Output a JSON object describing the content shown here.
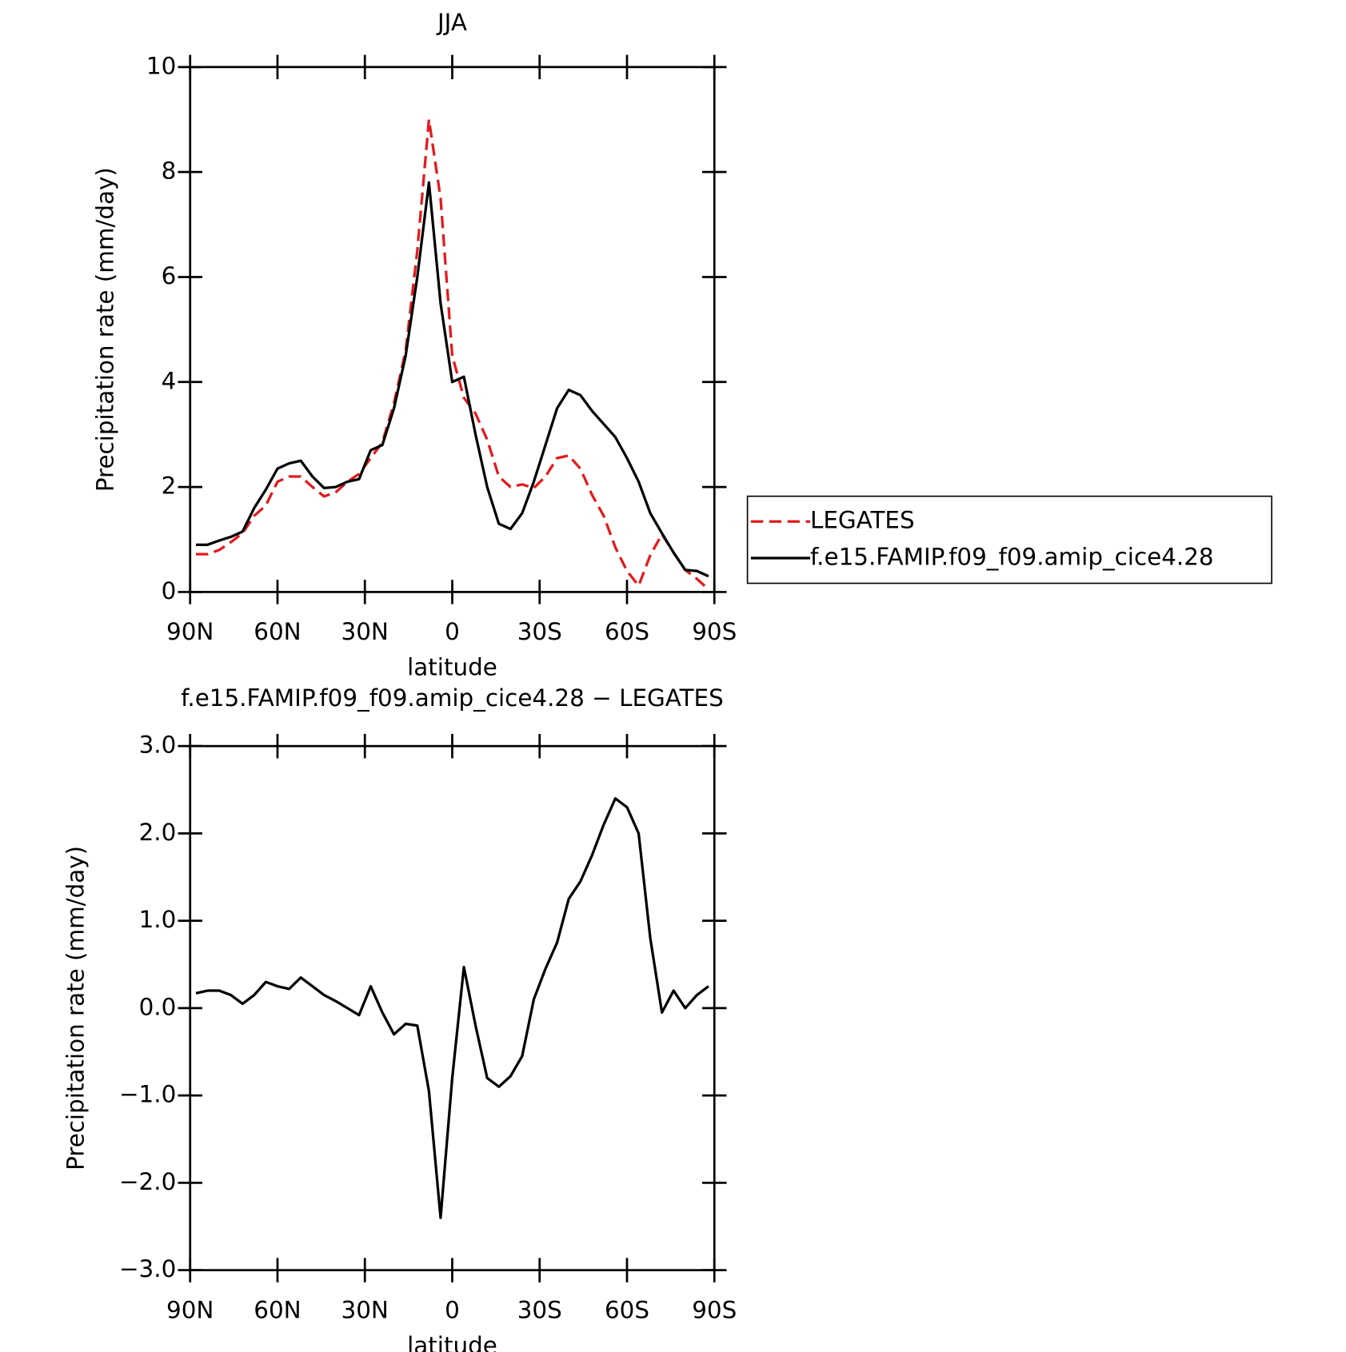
{
  "chart_data": [
    {
      "type": "line",
      "title": "JJA",
      "x_label": "latitude",
      "y_label": "Precipitation rate (mm/day)",
      "x": [
        88,
        84,
        80,
        76,
        72,
        68,
        64,
        60,
        56,
        52,
        48,
        44,
        40,
        36,
        32,
        28,
        24,
        20,
        16,
        12,
        8,
        4,
        0,
        -4,
        -8,
        -12,
        -16,
        -20,
        -24,
        -28,
        -32,
        -36,
        -40,
        -44,
        -48,
        -52,
        -56,
        -60,
        -64,
        -68,
        -72,
        -76,
        -80,
        -84,
        -88
      ],
      "series": [
        {
          "name": "LEGATES",
          "color": "#e31a1c",
          "line_style": "dashed",
          "values": [
            0.72,
            0.72,
            0.8,
            0.95,
            1.12,
            1.45,
            1.65,
            2.1,
            2.2,
            2.2,
            2.0,
            1.82,
            1.9,
            2.1,
            2.25,
            2.55,
            2.85,
            3.6,
            4.6,
            6.5,
            9.0,
            7.5,
            4.5,
            3.7,
            3.4,
            2.9,
            2.2,
            2.0,
            2.05,
            1.98,
            2.2,
            2.55,
            2.6,
            2.35,
            1.85,
            1.45,
            0.85,
            0.4,
            0.12,
            0.7,
            1.1,
            0.75,
            0.42,
            0.25,
            0.05
          ]
        },
        {
          "name": "f.e15.FAMIP.f09_f09.amip_cice4.28",
          "color": "#000000",
          "line_style": "solid",
          "values": [
            0.9,
            0.9,
            0.98,
            1.05,
            1.15,
            1.6,
            1.95,
            2.35,
            2.45,
            2.5,
            2.2,
            1.98,
            2.0,
            2.1,
            2.15,
            2.7,
            2.8,
            3.5,
            4.5,
            6.0,
            7.8,
            5.5,
            4.0,
            4.1,
            3.0,
            2.0,
            1.3,
            1.2,
            1.5,
            2.1,
            2.8,
            3.5,
            3.85,
            3.75,
            3.45,
            3.2,
            2.95,
            2.55,
            2.1,
            1.5,
            1.12,
            0.75,
            0.42,
            0.4,
            0.3
          ]
        }
      ],
      "xlim": [
        90,
        -90
      ],
      "xticks": [
        {
          "value": 90,
          "label": "90N"
        },
        {
          "value": 60,
          "label": "60N"
        },
        {
          "value": 30,
          "label": "30N"
        },
        0,
        {
          "value": -30,
          "label": "30S"
        },
        {
          "value": -60,
          "label": "60S"
        },
        {
          "value": -90,
          "label": "90S"
        }
      ],
      "ylim": [
        0,
        10
      ],
      "yticks": [
        0,
        2,
        4,
        6,
        8,
        10
      ],
      "legend": "right"
    },
    {
      "type": "line",
      "title": "f.e15.FAMIP.f09_f09.amip_cice4.28 − LEGATES",
      "x_label": "latitude",
      "y_label": "Precipitation rate (mm/day)",
      "x": [
        88,
        84,
        80,
        76,
        72,
        68,
        64,
        60,
        56,
        52,
        48,
        44,
        40,
        36,
        32,
        28,
        24,
        20,
        16,
        12,
        8,
        4,
        0,
        -4,
        -8,
        -12,
        -16,
        -20,
        -24,
        -28,
        -32,
        -36,
        -40,
        -44,
        -48,
        -52,
        -56,
        -60,
        -64,
        -68,
        -72,
        -76,
        -80,
        -84,
        -88
      ],
      "series": [
        {
          "name": null,
          "color": "#000000",
          "line_style": "solid",
          "values": [
            0.17,
            0.2,
            0.2,
            0.15,
            0.05,
            0.15,
            0.3,
            0.25,
            0.22,
            0.35,
            0.25,
            0.15,
            0.08,
            0.0,
            -0.08,
            0.25,
            -0.05,
            -0.3,
            -0.18,
            -0.2,
            -0.95,
            -2.4,
            -0.8,
            0.47,
            -0.2,
            -0.8,
            -0.9,
            -0.78,
            -0.55,
            0.1,
            0.45,
            0.75,
            1.25,
            1.45,
            1.75,
            2.1,
            2.4,
            2.3,
            2.0,
            0.8,
            -0.05,
            0.2,
            0.0,
            0.15,
            0.25
          ]
        }
      ],
      "xlim": [
        90,
        -90
      ],
      "xticks": [
        {
          "value": 90,
          "label": "90N"
        },
        {
          "value": 60,
          "label": "60N"
        },
        {
          "value": 30,
          "label": "30N"
        },
        0,
        {
          "value": -30,
          "label": "30S"
        },
        {
          "value": -60,
          "label": "60S"
        },
        {
          "value": -90,
          "label": "90S"
        }
      ],
      "ylim": [
        -3,
        3
      ],
      "yticks": [
        {
          "value": -3,
          "label": "−3.0"
        },
        {
          "value": -2,
          "label": "−2.0"
        },
        {
          "value": -1,
          "label": "−1.0"
        },
        {
          "value": 0,
          "label": "0.0"
        },
        {
          "value": 1,
          "label": "1.0"
        },
        {
          "value": 2,
          "label": "2.0"
        },
        {
          "value": 3,
          "label": "3.0"
        }
      ]
    }
  ]
}
